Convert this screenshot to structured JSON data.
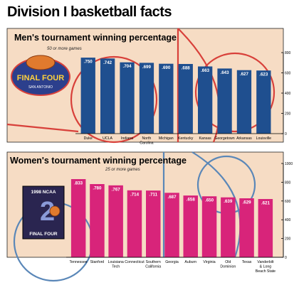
{
  "page_title": "Division I basketball facts",
  "colors": {
    "court": "#f6dcc4",
    "court_line": "#d8403a",
    "men_bar": "#1f4f8f",
    "women_bar": "#d8247a",
    "women_court_line": "#5a87b8"
  },
  "logos": {
    "men_logo_text": "FINAL FOUR",
    "men_logo_sub": "SAN ANTONIO",
    "women_logo_text": "1998 NCAA",
    "women_logo_sub": "FINAL FOUR"
  },
  "chart_data": [
    {
      "type": "bar",
      "title": "Men's tournament winning percentage",
      "subtitle": "50 or more games",
      "categories": [
        "Duke",
        "UCLA",
        "Indiana",
        "North Carolina",
        "Michigan",
        "Kentucky",
        "Kansas",
        "Georgetown",
        "Arkansas",
        "Louisville"
      ],
      "category_lines": [
        [
          "Duke"
        ],
        [
          "UCLA"
        ],
        [
          "Indiana"
        ],
        [
          "North",
          "Carolina"
        ],
        [
          "Michigan"
        ],
        [
          "Kentucky"
        ],
        [
          "Kansas"
        ],
        [
          "Georgetown"
        ],
        [
          "Arkansas"
        ],
        [
          "Louisville"
        ]
      ],
      "values": [
        0.75,
        0.742,
        0.704,
        0.699,
        0.69,
        0.688,
        0.663,
        0.643,
        0.627,
        0.623
      ],
      "value_labels": [
        ".750",
        ".742",
        ".704",
        ".699",
        ".690",
        ".688",
        ".663",
        ".643",
        ".627",
        ".623"
      ],
      "yticks": [
        0,
        200,
        400,
        600,
        800
      ],
      "ytick_labels": [
        "0",
        "200",
        "400",
        "600",
        "800"
      ],
      "ylim": [
        0,
        0.8
      ],
      "grid": false
    },
    {
      "type": "bar",
      "title": "Women's tournament winning percentage",
      "subtitle": "25 or more games",
      "categories": [
        "Tennessee",
        "Stanford",
        "Louisiana Tech",
        "Connecticut",
        "Southern California",
        "Georgia",
        "Auburn",
        "Virginia",
        "Old Dominion",
        "Texas",
        "Vanderbilt & Long Beach State"
      ],
      "category_lines": [
        [
          "Tennessee"
        ],
        [
          "Stanford"
        ],
        [
          "Louisiana",
          "Tech"
        ],
        [
          "Connecticut"
        ],
        [
          "Southern",
          "California"
        ],
        [
          "Georgia"
        ],
        [
          "Auburn"
        ],
        [
          "Virginia"
        ],
        [
          "Old",
          "Dominion"
        ],
        [
          "Texas"
        ],
        [
          "Vanderbilt",
          "& Long",
          "Beach State"
        ]
      ],
      "values": [
        0.833,
        0.78,
        0.767,
        0.714,
        0.711,
        0.687,
        0.658,
        0.65,
        0.639,
        0.629,
        0.621
      ],
      "value_labels": [
        ".833",
        ".780",
        ".767",
        ".714",
        ".711",
        ".687",
        ".658",
        ".650",
        ".639",
        ".629",
        ".621"
      ],
      "yticks": [
        0,
        200,
        400,
        600,
        800,
        1000
      ],
      "ytick_labels": [
        "0",
        "200",
        "400",
        "600",
        "800",
        "1000"
      ],
      "ylim": [
        0,
        1.0
      ],
      "grid": false
    }
  ]
}
